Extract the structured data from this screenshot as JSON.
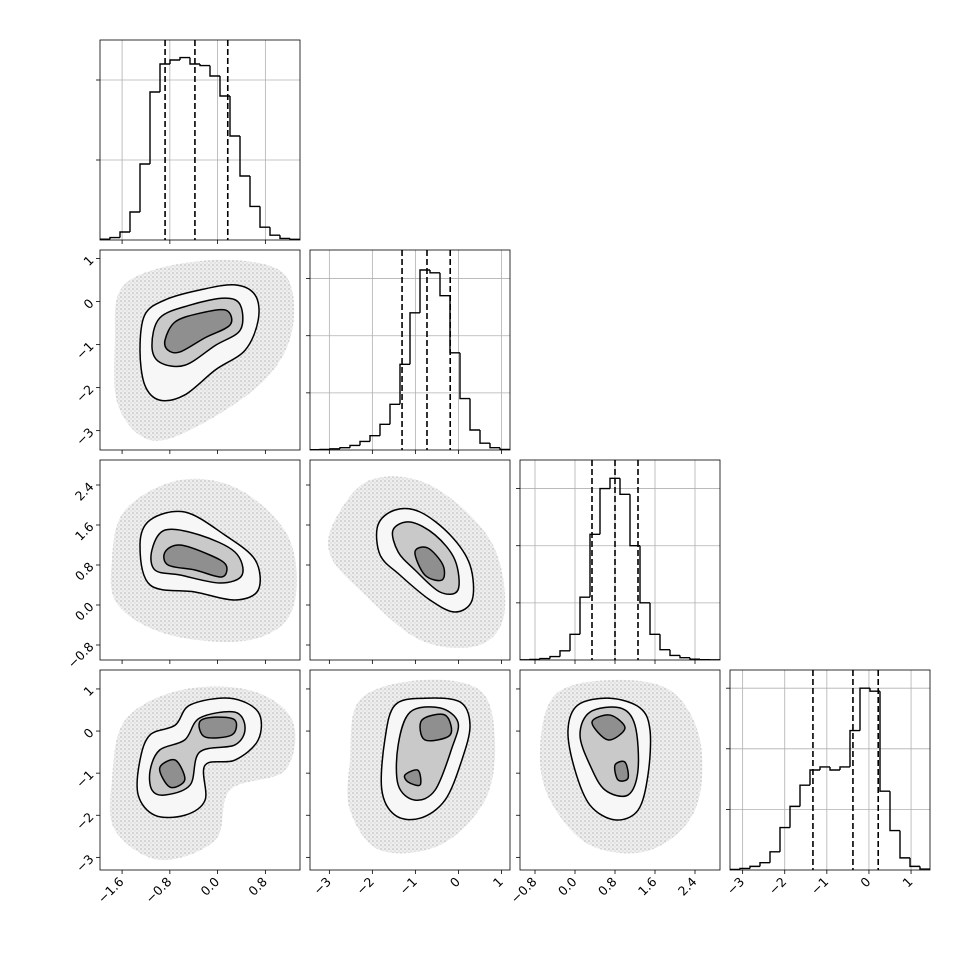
{
  "chart_data": {
    "type": "corner",
    "parameters": [
      {
        "xlim": [
          -1.97,
          1.38
        ],
        "xticks": [
          {
            "value": -1.6,
            "label": "−1.6"
          },
          {
            "value": -0.8,
            "label": "−0.8"
          },
          {
            "value": 0,
            "label": "0.0"
          },
          0.8
        ]
      },
      {
        "xlim": [
          -3.45,
          1.2
        ],
        "xticks": [
          {
            "value": -3,
            "label": "−3"
          },
          {
            "value": -2,
            "label": "−2"
          },
          {
            "value": -1,
            "label": "−1"
          },
          0,
          1
        ]
      },
      {
        "xlim": [
          -1.1,
          2.9
        ],
        "xticks": [
          {
            "value": -0.8,
            "label": "−0.8"
          },
          {
            "value": 0,
            "label": "0.0"
          },
          0.8,
          1.6,
          2.4
        ]
      },
      {
        "xlim": [
          -3.3,
          1.45
        ],
        "xticks": [
          {
            "value": -3,
            "label": "−3"
          },
          {
            "value": -2,
            "label": "−2"
          },
          {
            "value": -1,
            "label": "−1"
          },
          0,
          1
        ]
      }
    ],
    "histograms": [
      {
        "bins": [
          -1.97,
          -1.8025,
          -1.635,
          -1.4675,
          -1.3,
          -1.1325,
          -0.965,
          -0.7975,
          -0.63,
          -0.4625,
          -0.295,
          -0.1275,
          0.04,
          0.2075,
          0.375,
          0.5425,
          0.71,
          0.8775,
          1.045,
          1.2125,
          1.38
        ],
        "counts": [
          10,
          30,
          100,
          350,
          950,
          1850,
          2200,
          2250,
          2280,
          2200,
          2180,
          2050,
          1800,
          1300,
          800,
          420,
          160,
          60,
          20,
          8
        ],
        "ylim": [
          0,
          2500
        ],
        "yticks": [
          1000,
          2000
        ],
        "quantiles": [
          -0.88,
          -0.38,
          0.17
        ]
      },
      {
        "bins": [
          -3.45,
          -3.2175,
          -2.985,
          -2.7525,
          -2.52,
          -2.2875,
          -2.055,
          -1.8225,
          -1.59,
          -1.3575,
          -1.125,
          -0.8925,
          -0.66,
          -0.4275,
          -0.195,
          0.0375,
          0.27,
          0.5025,
          0.735,
          0.9675,
          1.2
        ],
        "counts": [
          5,
          10,
          20,
          40,
          80,
          150,
          250,
          450,
          800,
          1500,
          2400,
          3150,
          3100,
          2700,
          1700,
          900,
          350,
          120,
          40,
          10
        ],
        "ylim": [
          0,
          3500
        ],
        "yticks": [
          1000,
          2000,
          3000
        ],
        "quantiles": [
          -1.31,
          -0.73,
          -0.19
        ]
      },
      {
        "bins": [
          -1.1,
          -0.9,
          -0.7,
          -0.5,
          -0.3,
          -0.1,
          0.1,
          0.3,
          0.5,
          0.7,
          0.9,
          1.1,
          1.3,
          1.5,
          1.7,
          1.9,
          2.1,
          2.3,
          2.5,
          2.7,
          2.9
        ],
        "counts": [
          3,
          10,
          25,
          60,
          160,
          450,
          1100,
          2200,
          3000,
          3180,
          2900,
          2000,
          1000,
          450,
          180,
          80,
          40,
          15,
          5,
          2
        ],
        "ylim": [
          0,
          3500
        ],
        "yticks": [
          1000,
          2000,
          3000
        ],
        "quantiles": [
          0.34,
          0.8,
          1.26
        ]
      },
      {
        "bins": [
          -3.3,
          -3.0625,
          -2.825,
          -2.5875,
          -2.35,
          -2.1125,
          -1.875,
          -1.6375,
          -1.4,
          -1.1625,
          -0.925,
          -0.6875,
          -0.45,
          -0.2125,
          0.025,
          0.2625,
          0.5,
          0.7375,
          0.975,
          1.2125,
          1.45
        ],
        "counts": [
          10,
          25,
          60,
          120,
          300,
          700,
          1050,
          1400,
          1650,
          1700,
          1650,
          1700,
          2300,
          3000,
          2950,
          1300,
          650,
          200,
          60,
          15
        ],
        "ylim": [
          0,
          3300
        ],
        "yticks": [
          1000,
          2000,
          3000
        ],
        "quantiles": [
          -1.33,
          -0.38,
          0.22
        ]
      }
    ],
    "panels": [
      [
        {
          "cloud": {
            "x": [
              -1.72,
              -1.63,
              -0.97,
              0.21,
              1.13,
              1.25,
              0.79,
              -0.3,
              -1.13,
              -1.67
            ],
            "y": [
              -0.89,
              0.27,
              0.78,
              0.97,
              0.62,
              -0.66,
              -1.82,
              -2.87,
              -3.22,
              -2.4
            ]
          },
          "contours": [
            {
              "x": [
                -1.3,
                -1.22,
                -0.88,
                -0.3,
                0.29,
                0.63,
                0.68,
                0.46,
                -0.04,
                -0.55,
                -0.97,
                -1.22
              ],
              "y": [
                -1.13,
                -0.31,
                0.04,
                0.27,
                0.39,
                0.15,
                -0.43,
                -1.13,
                -1.59,
                -2.17,
                -2.29,
                -1.94
              ]
            },
            {
              "x": [
                -1.1,
                -0.97,
                -0.46,
                0.12,
                0.38,
                0.38,
                -0.04,
                -0.55,
                -0.97
              ],
              "y": [
                -1.02,
                -0.38,
                -0.08,
                0.08,
                -0.08,
                -0.66,
                -1.02,
                -1.48,
                -1.41
              ]
            },
            {
              "x": [
                -0.88,
                -0.71,
                -0.3,
                0.14,
                0.21,
                -0.21,
                -0.63,
                -0.83
              ],
              "y": [
                -0.89,
                -0.47,
                -0.27,
                -0.2,
                -0.54,
                -0.84,
                -1.17,
                -1.13
              ]
            }
          ]
        }
      ],
      [
        {
          "cloud": {
            "x": [
              -1.77,
              -1.55,
              -0.63,
              0.38,
              1.21,
              1.25,
              0.54,
              -0.8,
              -1.67
            ],
            "y": [
              0.9,
              1.9,
              2.5,
              2.3,
              1.3,
              -0.1,
              -0.7,
              -0.6,
              0.0
            ]
          },
          "contours": [
            {
              "x": [
                -1.3,
                -1.13,
                -0.55,
                0.12,
                0.63,
                0.68,
                0.29,
                -0.38,
                -1.13
              ],
              "y": [
                1.2,
                1.7,
                1.86,
                1.4,
                0.9,
                0.3,
                0.1,
                0.26,
                0.4
              ]
            },
            {
              "x": [
                -1.1,
                -0.88,
                -0.3,
                0.29,
                0.41,
                0.04,
                -0.63,
                -1.05
              ],
              "y": [
                1.1,
                1.5,
                1.4,
                1.06,
                0.6,
                0.44,
                0.6,
                0.7
              ]
            },
            {
              "x": [
                -0.88,
                -0.63,
                -0.13,
                0.14,
                0.07,
                -0.38,
                -0.83
              ],
              "y": [
                1.06,
                1.2,
                1.0,
                0.8,
                0.56,
                0.7,
                0.8
              ]
            }
          ]
        },
        {
          "cloud": {
            "x": [
              -2.87,
              -2.05,
              -0.66,
              0.74,
              1.08,
              0.5,
              -0.89,
              -2.29,
              -2.98
            ],
            "y": [
              1.7,
              2.5,
              2.4,
              1.3,
              -0.1,
              -0.8,
              -0.7,
              0.3,
              1.0
            ]
          },
          "contours": [
            {
              "x": [
                -1.87,
                -1.47,
                -0.89,
                -0.19,
                0.27,
                0.32,
                -0.08,
                -0.66,
                -1.36,
                -1.82
              ],
              "y": [
                1.6,
                1.9,
                1.86,
                1.4,
                0.8,
                0.1,
                -0.14,
                0.1,
                0.6,
                1.0
              ]
            },
            {
              "x": [
                -1.52,
                -1.12,
                -0.54,
                -0.08,
                -0.01,
                -0.43,
                -1.01,
                -1.4
              ],
              "y": [
                1.5,
                1.66,
                1.4,
                0.9,
                0.3,
                0.26,
                0.7,
                1.06
              ]
            },
            {
              "x": [
                -1.01,
                -0.71,
                -0.36,
                -0.38,
                -0.78
              ],
              "y": [
                1.06,
                1.14,
                0.8,
                0.5,
                0.6
              ]
            }
          ]
        }
      ],
      [
        {
          "cloud": {
            "x": [
              -1.77,
              -1.55,
              -0.63,
              0.54,
              1.25,
              1.13,
              0.21,
              -0.04,
              -0.97,
              -1.72
            ],
            "y": [
              -1.16,
              0.26,
              0.97,
              0.97,
              0.26,
              -0.93,
              -1.4,
              -2.59,
              -3.06,
              -2.35
            ]
          },
          "contours": [
            {
              "x": [
                -1.3,
                -1.13,
                -0.71,
                -0.46,
                0.21,
                0.68,
                0.68,
                0.29,
                -0.21,
                -0.21,
                -0.55,
                -1.05,
                -1.33
              ],
              "y": [
                -0.69,
                -0.09,
                0.14,
                0.62,
                0.78,
                0.45,
                -0.21,
                -0.69,
                -0.81,
                -1.64,
                -2.0,
                -2.0,
                -1.52
              ]
            },
            {
              "x": [
                -1.13,
                -0.97,
                -0.55,
                -0.3,
                0.29,
                0.46,
                0.29,
                -0.3,
                -0.46,
                -0.88,
                -1.1
              ],
              "y": [
                -0.93,
                -0.45,
                -0.21,
                0.31,
                0.45,
                0.07,
                -0.33,
                -0.5,
                -1.28,
                -1.52,
                -1.4
              ]
            },
            {
              "x": [
                -0.3,
                -0.04,
                0.29,
                0.24,
                -0.21
              ],
              "y": [
                0.22,
                0.33,
                0.26,
                -0.09,
                -0.14
              ]
            },
            {
              "x": [
                -0.97,
                -0.71,
                -0.55,
                -0.8
              ],
              "y": [
                -0.88,
                -0.69,
                -1.16,
                -1.33
              ]
            }
          ]
        },
        {
          "cloud": {
            "x": [
              -2.52,
              -2.29,
              -0.89,
              0.5,
              0.85,
              0.62,
              -0.43,
              -1.82,
              -2.52
            ],
            "y": [
              -0.69,
              0.74,
              1.21,
              0.97,
              -0.21,
              -1.64,
              -2.71,
              -2.83,
              -1.88
            ]
          },
          "contours": [
            {
              "x": [
                -1.71,
                -1.47,
                -0.78,
                0.04,
                0.27,
                0.08,
                -0.31,
                -0.89,
                -1.47,
                -1.78
              ],
              "y": [
                -0.21,
                0.62,
                0.78,
                0.69,
                0.14,
                -0.69,
                -1.64,
                -2.07,
                -2.0,
                -1.4
              ]
            },
            {
              "x": [
                -1.4,
                -1.12,
                -0.43,
                -0.01,
                -0.15,
                -0.54,
                -1.01,
                -1.4
              ],
              "y": [
                -0.33,
                0.45,
                0.55,
                0.21,
                -0.4,
                -1.4,
                -1.64,
                -1.28
              ]
            },
            {
              "x": [
                -0.85,
                -0.31,
                -0.19,
                -0.78
              ],
              "y": [
                0.26,
                0.38,
                -0.09,
                -0.21
              ]
            },
            {
              "x": [
                -1.24,
                -0.94,
                -0.89,
                -1.17
              ],
              "y": [
                -1.04,
                -0.93,
                -1.28,
                -1.21
              ]
            }
          ]
        },
        {
          "cloud": {
            "x": [
              -0.7,
              -0.4,
              0.7,
              1.9,
              2.5,
              2.4,
              1.5,
              0.3,
              -0.5
            ],
            "y": [
              -0.45,
              0.86,
              1.21,
              0.97,
              -0.21,
              -1.88,
              -2.83,
              -2.71,
              -1.64
            ]
          },
          "contours": [
            {
              "x": [
                -0.14,
                0.06,
                0.7,
                1.3,
                1.5,
                1.46,
                1.26,
                0.8,
                0.3,
                0.0
              ],
              "y": [
                0.02,
                0.62,
                0.78,
                0.55,
                0.02,
                -1.04,
                -1.88,
                -2.11,
                -1.76,
                -0.93
              ]
            },
            {
              "x": [
                0.1,
                0.3,
                0.9,
                1.2,
                1.26,
                1.06,
                0.6,
                0.3
              ],
              "y": [
                -0.09,
                0.45,
                0.55,
                0.14,
                -0.93,
                -1.52,
                -1.4,
                -0.81
              ]
            },
            {
              "x": [
                0.34,
                0.7,
                1.0,
                0.66
              ],
              "y": [
                0.21,
                0.38,
                0.07,
                -0.21
              ]
            },
            {
              "x": [
                0.8,
                1.0,
                1.06,
                0.86
              ],
              "y": [
                -0.81,
                -0.74,
                -1.12,
                -1.16
              ]
            }
          ]
        }
      ]
    ]
  }
}
